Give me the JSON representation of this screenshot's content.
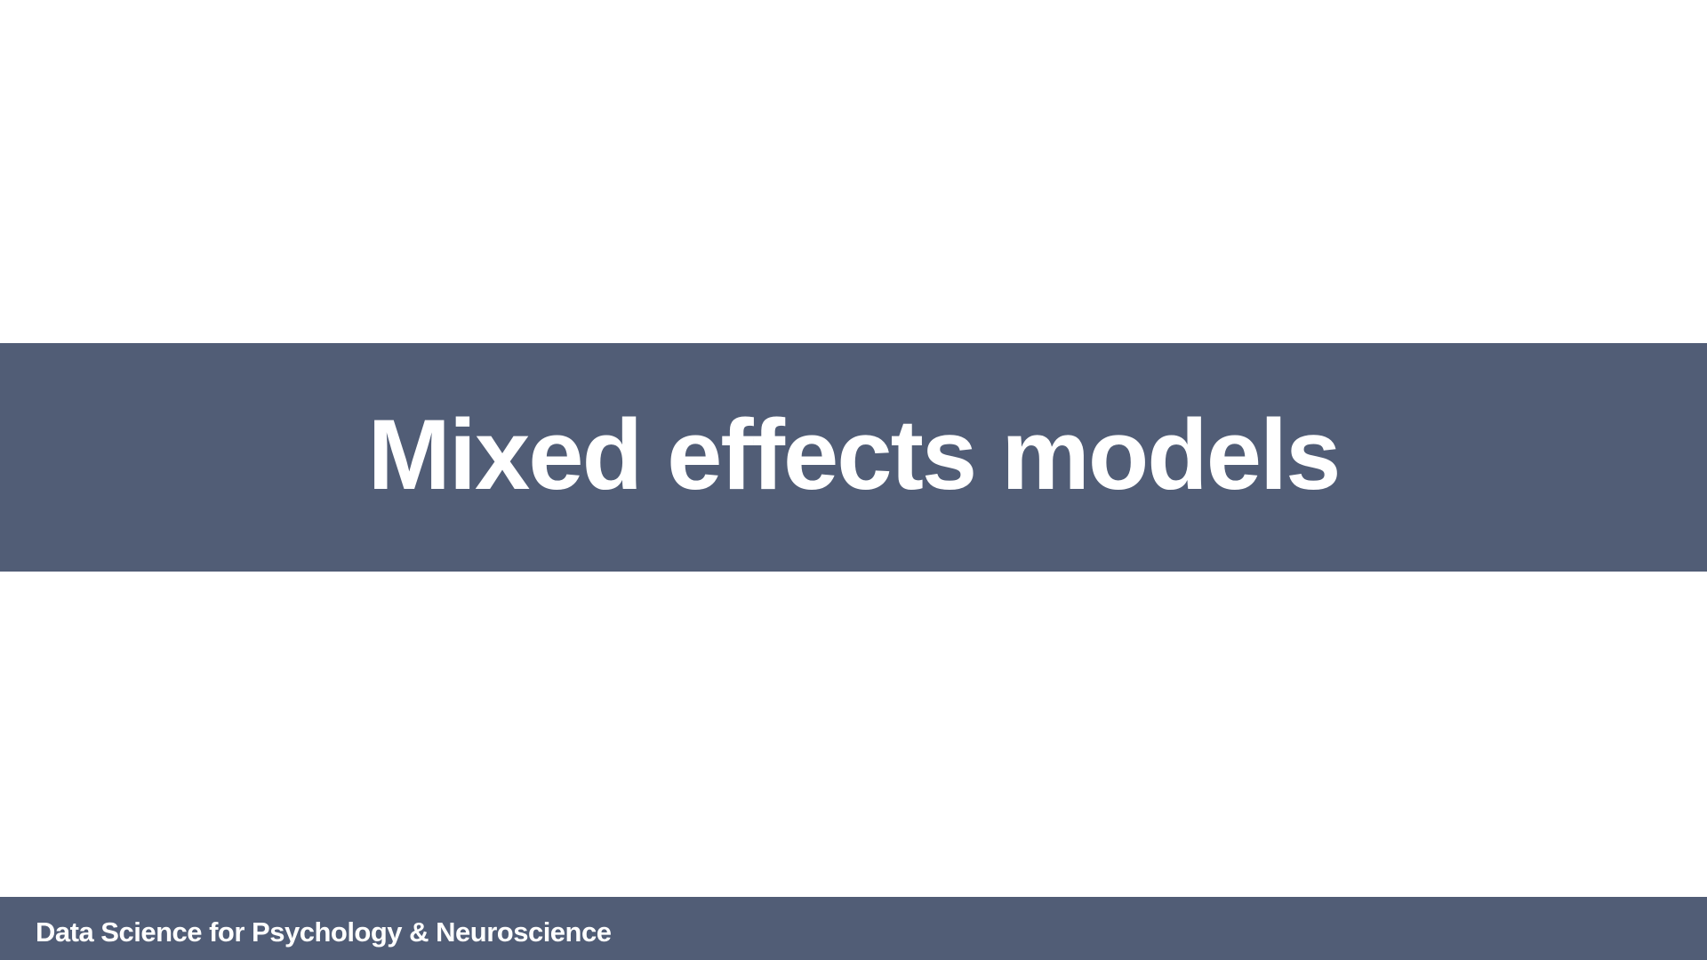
{
  "slide": {
    "title": "Mixed effects models",
    "footer": "Data Science for Psychology & Neuroscience"
  },
  "colors": {
    "band": "#515d76",
    "text": "#ffffff",
    "background": "#ffffff"
  }
}
